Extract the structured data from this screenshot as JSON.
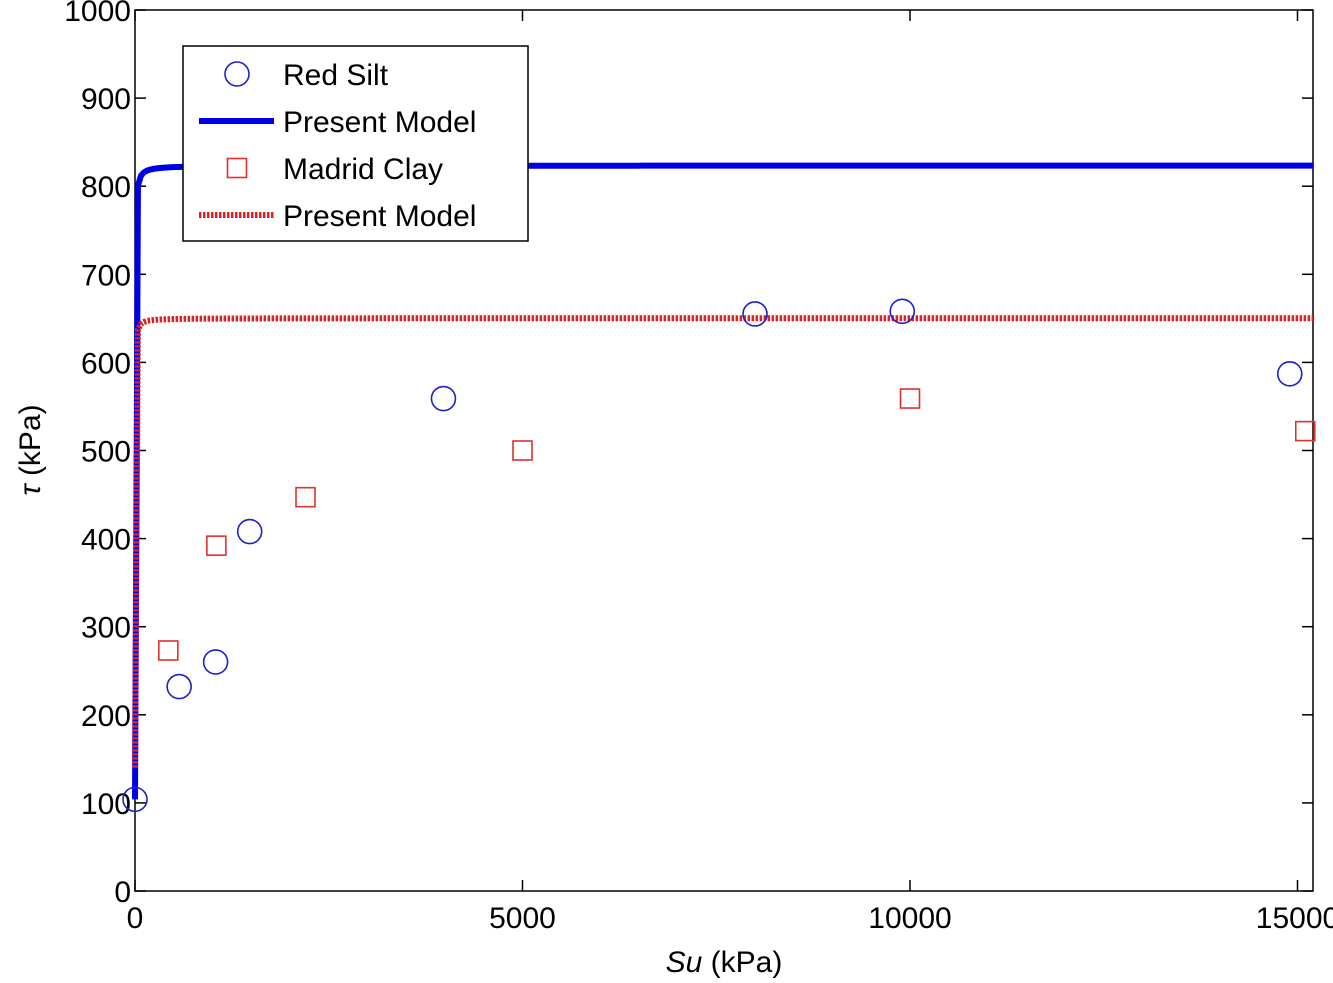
{
  "chart_data": {
    "type": "scatter",
    "xlabel_italic": "Su",
    "xlabel_rest": " (kPa)",
    "ylabel_italic": "τ",
    "ylabel_rest": " (kPa)",
    "xlim": [
      0,
      15200
    ],
    "ylim": [
      0,
      1000
    ],
    "x_ticks": [
      0,
      5000,
      10000,
      15000
    ],
    "x_tick_labels": [
      "0",
      "5000",
      "10000",
      "15000"
    ],
    "y_ticks": [
      0,
      100,
      200,
      300,
      400,
      500,
      600,
      700,
      800,
      900,
      1000
    ],
    "y_tick_labels": [
      "0",
      "100",
      "200",
      "300",
      "400",
      "500",
      "600",
      "700",
      "800",
      "900",
      "1000"
    ],
    "grid": false,
    "legend_position": "top-left",
    "series": [
      {
        "name": "Red Silt",
        "kind": "markers",
        "marker": "circle",
        "color": "#1f1fcc",
        "x": [
          0,
          570,
          1040,
          1480,
          3980,
          8000,
          9900,
          14900
        ],
        "y": [
          104,
          232,
          260,
          408,
          559,
          655,
          658,
          587
        ]
      },
      {
        "name": "Present Model",
        "kind": "line",
        "style": "solid",
        "color": "#0000e6",
        "model": {
          "a": 104,
          "b": 0.00174,
          "c": 0.00139
        }
      },
      {
        "name": "Madrid Clay",
        "kind": "markers",
        "marker": "square",
        "color": "#e03030",
        "x": [
          430,
          1050,
          2200,
          5000,
          10000,
          15100
        ],
        "y": [
          273,
          392,
          447,
          500,
          559,
          522
        ]
      },
      {
        "name": "Present Model",
        "kind": "line",
        "style": "dotted",
        "color": "#e02020",
        "model": {
          "a": 140,
          "b": 0.00192,
          "c": 0.00196
        }
      }
    ]
  }
}
